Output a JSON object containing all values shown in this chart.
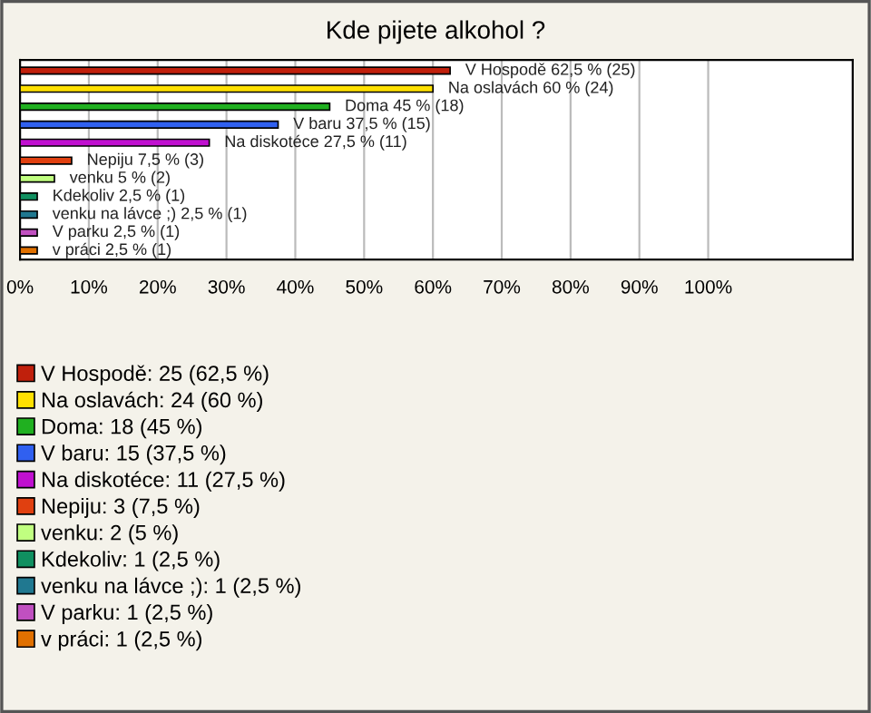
{
  "chart_data": {
    "type": "bar",
    "orientation": "horizontal",
    "stacked": true,
    "title": "Kde pijete alkohol ?",
    "categories": [
      null,
      null,
      null,
      null,
      null,
      null,
      null,
      null,
      null,
      null,
      null
    ],
    "series": [
      {
        "name": "V Hospodě: 25 (62,5 %)",
        "color": "#c0200c",
        "values": [
          62.5,
          null,
          null,
          null,
          null,
          null,
          null,
          null,
          null,
          null,
          null
        ],
        "value_labels": [
          "V Hospodě 62,5 % (25)",
          null,
          null,
          null,
          null,
          null,
          null,
          null,
          null,
          null,
          null
        ]
      },
      {
        "name": "Na oslavách: 24 (60 %)",
        "color": "#ffe000",
        "values": [
          null,
          60,
          null,
          null,
          null,
          null,
          null,
          null,
          null,
          null,
          null
        ],
        "value_labels": [
          null,
          "Na oslavách 60 % (24)",
          null,
          null,
          null,
          null,
          null,
          null,
          null,
          null,
          null
        ]
      },
      {
        "name": "Doma: 18 (45 %)",
        "color": "#20b020",
        "values": [
          null,
          null,
          45,
          null,
          null,
          null,
          null,
          null,
          null,
          null,
          null
        ],
        "value_labels": [
          null,
          null,
          "Doma 45 % (18)",
          null,
          null,
          null,
          null,
          null,
          null,
          null,
          null
        ]
      },
      {
        "name": "V baru: 15 (37,5 %)",
        "color": "#3060f0",
        "values": [
          null,
          null,
          null,
          37.5,
          null,
          null,
          null,
          null,
          null,
          null,
          null
        ],
        "value_labels": [
          null,
          null,
          null,
          "V baru 37,5 % (15)",
          null,
          null,
          null,
          null,
          null,
          null,
          null
        ]
      },
      {
        "name": "Na diskotéce: 11 (27,5 %)",
        "color": "#c010d0",
        "values": [
          null,
          null,
          null,
          null,
          27.5,
          null,
          null,
          null,
          null,
          null,
          null
        ],
        "value_labels": [
          null,
          null,
          null,
          null,
          "Na diskotéce 27,5 % (11)",
          null,
          null,
          null,
          null,
          null,
          null
        ]
      },
      {
        "name": "Nepiju: 3 (7,5 %)",
        "color": "#e04010",
        "values": [
          null,
          null,
          null,
          null,
          null,
          7.5,
          null,
          null,
          null,
          null,
          null
        ],
        "value_labels": [
          null,
          null,
          null,
          null,
          null,
          "Nepiju 7,5 % (3)",
          null,
          null,
          null,
          null,
          null
        ]
      },
      {
        "name": "venku: 2 (5 %)",
        "color": "#c0ff80",
        "values": [
          null,
          null,
          null,
          null,
          null,
          null,
          5,
          null,
          null,
          null,
          null
        ],
        "value_labels": [
          null,
          null,
          null,
          null,
          null,
          null,
          "venku 5 % (2)",
          null,
          null,
          null,
          null
        ]
      },
      {
        "name": "Kdekoliv: 1 (2,5 %)",
        "color": "#109060",
        "values": [
          null,
          null,
          null,
          null,
          null,
          null,
          null,
          2.5,
          null,
          null,
          null
        ],
        "value_labels": [
          null,
          null,
          null,
          null,
          null,
          null,
          null,
          "Kdekoliv 2,5 % (1)",
          null,
          null,
          null
        ]
      },
      {
        "name": "venku na lávce ;): 1 (2,5 %)",
        "color": "#207890",
        "values": [
          null,
          null,
          null,
          null,
          null,
          null,
          null,
          null,
          2.5,
          null,
          null
        ],
        "value_labels": [
          null,
          null,
          null,
          null,
          null,
          null,
          null,
          null,
          "venku na lávce ;) 2,5 % (1)",
          null,
          null
        ]
      },
      {
        "name": "V parku: 1 (2,5 %)",
        "color": "#c050c0",
        "values": [
          null,
          null,
          null,
          null,
          null,
          null,
          null,
          null,
          null,
          2.5,
          null
        ],
        "value_labels": [
          null,
          null,
          null,
          null,
          null,
          null,
          null,
          null,
          null,
          "V parku 2,5 % (1)",
          null
        ]
      },
      {
        "name": "v práci: 1 (2,5 %)",
        "color": "#e07000",
        "values": [
          null,
          null,
          null,
          null,
          null,
          null,
          null,
          null,
          null,
          null,
          2.5
        ],
        "value_labels": [
          null,
          null,
          null,
          null,
          null,
          null,
          null,
          null,
          null,
          null,
          "v práci 2,5 % (1)"
        ]
      }
    ],
    "xlim": [
      0,
      121
    ],
    "xticks": [
      {
        "value": 0,
        "label": "0%"
      },
      {
        "value": 10,
        "label": "10%"
      },
      {
        "value": 20,
        "label": "20%"
      },
      {
        "value": 30,
        "label": "30%"
      },
      {
        "value": 40,
        "label": "40%"
      },
      {
        "value": 50,
        "label": "50%"
      },
      {
        "value": 60,
        "label": "60%"
      },
      {
        "value": 70,
        "label": "70%"
      },
      {
        "value": 80,
        "label": "80%"
      },
      {
        "value": 90,
        "label": "90%"
      },
      {
        "value": 100,
        "label": "100%"
      }
    ],
    "grid": "x",
    "legend": "bottom"
  }
}
